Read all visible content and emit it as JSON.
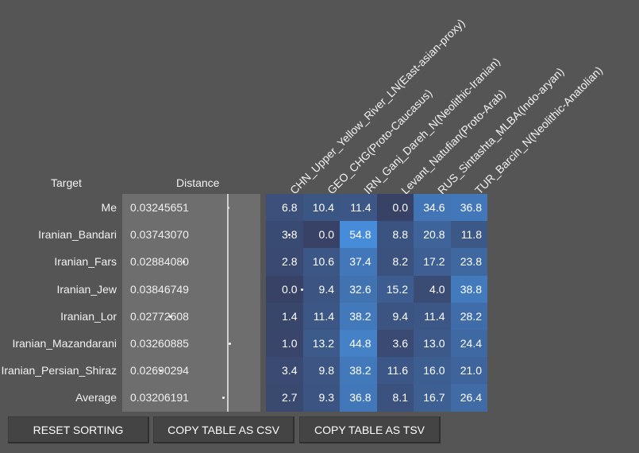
{
  "headers": {
    "target": "Target",
    "distance": "Distance",
    "columns": [
      "CHN_Upper_Yellow_River_LN(East-asian-proxy)",
      "GEO_CHG(Proto-Caucasus)",
      "IRN_Ganj_Dareh_N(Neolithic-Iranian)",
      "Levant_Natufian(Proto-Arab)",
      "RUS_Sintashta_MLBA(Indo-aryan)",
      "TUR_Barcin_N(Neolithic-Anatolian)"
    ]
  },
  "rows": [
    {
      "name": "Me",
      "distance": "0.03245651",
      "dist_value": 0.03245651,
      "values": [
        "6.8",
        "10.4",
        "11.4",
        "0.0",
        "34.6",
        "36.8"
      ]
    },
    {
      "name": "Iranian_Bandari",
      "distance": "0.03743070",
      "dist_value": 0.0374307,
      "values": [
        "3.8",
        "0.0",
        "54.8",
        "8.8",
        "20.8",
        "11.8"
      ]
    },
    {
      "name": "Iranian_Fars",
      "distance": "0.02884080",
      "dist_value": 0.0288408,
      "values": [
        "2.8",
        "10.6",
        "37.4",
        "8.2",
        "17.2",
        "23.8"
      ]
    },
    {
      "name": "Iranian_Jew",
      "distance": "0.03846749",
      "dist_value": 0.03846749,
      "values": [
        "0.0",
        "9.4",
        "32.6",
        "15.2",
        "4.0",
        "38.8"
      ]
    },
    {
      "name": "Iranian_Lor",
      "distance": "0.02772608",
      "dist_value": 0.02772608,
      "values": [
        "1.4",
        "11.4",
        "38.2",
        "9.4",
        "11.4",
        "28.2"
      ]
    },
    {
      "name": "Iranian_Mazandarani",
      "distance": "0.03260885",
      "dist_value": 0.03260885,
      "values": [
        "1.0",
        "13.2",
        "44.8",
        "3.6",
        "13.0",
        "24.4"
      ]
    },
    {
      "name": "Iranian_Persian_Shiraz",
      "distance": "0.02690294",
      "dist_value": 0.02690294,
      "values": [
        "3.4",
        "9.8",
        "38.2",
        "11.6",
        "16.0",
        "21.0"
      ]
    },
    {
      "name": "Average",
      "distance": "0.03206191",
      "dist_value": 0.03206191,
      "values": [
        "2.7",
        "9.3",
        "36.8",
        "8.1",
        "16.7",
        "26.4"
      ]
    }
  ],
  "buttons": {
    "reset": "RESET SORTING",
    "csv": "COPY TABLE AS CSV",
    "tsv": "COPY TABLE AS TSV"
  }
}
